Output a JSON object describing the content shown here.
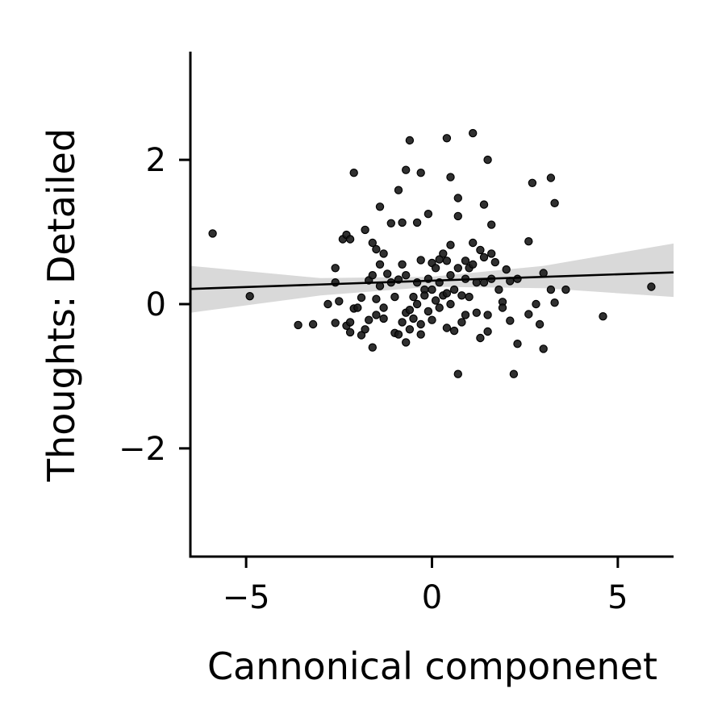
{
  "chart_data": {
    "type": "scatter",
    "xlabel": "Cannonical componenet",
    "ylabel": "Thoughts: Detailed",
    "xlim": [
      -6.5,
      6.5
    ],
    "ylim": [
      -3.5,
      3.5
    ],
    "xticks": [
      {
        "value": -5,
        "label": "−5"
      },
      {
        "value": 0,
        "label": "0"
      },
      {
        "value": 5,
        "label": "5"
      }
    ],
    "yticks": [
      {
        "value": 2,
        "label": "2"
      },
      {
        "value": 0,
        "label": "0"
      },
      {
        "value": -2,
        "label": "−2"
      }
    ],
    "grid": false,
    "colors": {
      "points": "#1a1a1a",
      "line": "#000000",
      "band": "#d9d9d9"
    },
    "regression": {
      "x": [
        -6.5,
        6.5
      ],
      "y": [
        0.21,
        0.44
      ]
    },
    "confidence_band": {
      "x": [
        -6.5,
        -3,
        0,
        3,
        6.5
      ],
      "lower": [
        -0.12,
        0.12,
        0.24,
        0.22,
        0.1
      ],
      "upper": [
        0.53,
        0.36,
        0.38,
        0.53,
        0.84
      ]
    },
    "points": [
      [
        -5.9,
        0.98
      ],
      [
        -4.9,
        0.11
      ],
      [
        -3.6,
        -0.29
      ],
      [
        -3.2,
        -0.28
      ],
      [
        -2.8,
        0.0
      ],
      [
        -2.6,
        0.5
      ],
      [
        -2.6,
        0.3
      ],
      [
        -2.6,
        -0.26
      ],
      [
        -2.5,
        0.04
      ],
      [
        -2.4,
        0.9
      ],
      [
        -2.3,
        0.96
      ],
      [
        -2.3,
        -0.3
      ],
      [
        -2.2,
        0.9
      ],
      [
        -2.2,
        -0.25
      ],
      [
        -2.2,
        -0.39
      ],
      [
        -2.1,
        1.82
      ],
      [
        -2.1,
        -0.06
      ],
      [
        -2.0,
        -0.05
      ],
      [
        -1.9,
        -0.43
      ],
      [
        -1.9,
        0.09
      ],
      [
        -1.8,
        1.03
      ],
      [
        -1.8,
        -0.35
      ],
      [
        -1.7,
        0.33
      ],
      [
        -1.7,
        -0.22
      ],
      [
        -1.6,
        0.85
      ],
      [
        -1.6,
        0.4
      ],
      [
        -1.6,
        -0.6
      ],
      [
        -1.5,
        0.76
      ],
      [
        -1.5,
        0.07
      ],
      [
        -1.5,
        -0.15
      ],
      [
        -1.4,
        1.35
      ],
      [
        -1.4,
        0.55
      ],
      [
        -1.4,
        0.25
      ],
      [
        -1.3,
        0.7
      ],
      [
        -1.3,
        -0.05
      ],
      [
        -1.3,
        -0.2
      ],
      [
        -1.2,
        0.42
      ],
      [
        -1.1,
        1.12
      ],
      [
        -1.1,
        0.3
      ],
      [
        -1.0,
        0.1
      ],
      [
        -1.0,
        -0.4
      ],
      [
        -0.9,
        1.58
      ],
      [
        -0.9,
        0.34
      ],
      [
        -0.9,
        -0.42
      ],
      [
        -0.8,
        1.13
      ],
      [
        -0.8,
        0.55
      ],
      [
        -0.8,
        -0.25
      ],
      [
        -0.7,
        1.86
      ],
      [
        -0.7,
        0.4
      ],
      [
        -0.7,
        -0.12
      ],
      [
        -0.7,
        -0.53
      ],
      [
        -0.6,
        2.27
      ],
      [
        -0.6,
        -0.08
      ],
      [
        -0.6,
        -0.35
      ],
      [
        -0.5,
        0.1
      ],
      [
        -0.5,
        -0.2
      ],
      [
        -0.4,
        1.13
      ],
      [
        -0.4,
        0.3
      ],
      [
        -0.4,
        0.0
      ],
      [
        -0.3,
        1.82
      ],
      [
        -0.3,
        0.61
      ],
      [
        -0.3,
        -0.28
      ],
      [
        -0.3,
        -0.42
      ],
      [
        -0.2,
        0.2
      ],
      [
        -0.2,
        0.12
      ],
      [
        -0.1,
        1.25
      ],
      [
        -0.1,
        0.35
      ],
      [
        -0.1,
        -0.1
      ],
      [
        0.0,
        0.57
      ],
      [
        0.0,
        0.2
      ],
      [
        0.0,
        -0.22
      ],
      [
        0.1,
        0.5
      ],
      [
        0.1,
        0.05
      ],
      [
        0.2,
        0.62
      ],
      [
        0.2,
        0.3
      ],
      [
        0.2,
        -0.05
      ],
      [
        0.3,
        0.7
      ],
      [
        0.3,
        0.12
      ],
      [
        0.4,
        2.3
      ],
      [
        0.4,
        0.6
      ],
      [
        0.4,
        0.15
      ],
      [
        0.4,
        -0.33
      ],
      [
        0.5,
        1.76
      ],
      [
        0.5,
        0.82
      ],
      [
        0.5,
        0.4
      ],
      [
        0.5,
        0.0
      ],
      [
        0.6,
        0.2
      ],
      [
        0.6,
        -0.37
      ],
      [
        0.7,
        1.47
      ],
      [
        0.7,
        1.22
      ],
      [
        0.7,
        0.5
      ],
      [
        0.7,
        -0.97
      ],
      [
        0.8,
        0.12
      ],
      [
        0.8,
        -0.25
      ],
      [
        0.9,
        0.6
      ],
      [
        0.9,
        0.35
      ],
      [
        0.9,
        -0.15
      ],
      [
        1.0,
        0.5
      ],
      [
        1.0,
        0.1
      ],
      [
        1.1,
        2.37
      ],
      [
        1.1,
        0.85
      ],
      [
        1.1,
        0.55
      ],
      [
        1.2,
        0.3
      ],
      [
        1.2,
        -0.12
      ],
      [
        1.3,
        0.75
      ],
      [
        1.3,
        -0.47
      ],
      [
        1.4,
        1.38
      ],
      [
        1.4,
        0.65
      ],
      [
        1.4,
        0.3
      ],
      [
        1.5,
        2.0
      ],
      [
        1.5,
        -0.38
      ],
      [
        1.5,
        -0.15
      ],
      [
        1.6,
        1.1
      ],
      [
        1.6,
        0.7
      ],
      [
        1.6,
        0.35
      ],
      [
        1.7,
        0.58
      ],
      [
        1.8,
        0.2
      ],
      [
        1.9,
        0.03
      ],
      [
        1.9,
        -0.05
      ],
      [
        2.0,
        0.48
      ],
      [
        2.1,
        0.32
      ],
      [
        2.1,
        -0.23
      ],
      [
        2.2,
        -0.97
      ],
      [
        2.3,
        0.35
      ],
      [
        2.3,
        -0.55
      ],
      [
        2.6,
        0.87
      ],
      [
        2.6,
        -0.14
      ],
      [
        2.7,
        1.68
      ],
      [
        2.8,
        0.0
      ],
      [
        2.9,
        -0.28
      ],
      [
        3.0,
        0.43
      ],
      [
        3.0,
        -0.62
      ],
      [
        3.2,
        1.75
      ],
      [
        3.2,
        0.2
      ],
      [
        3.3,
        1.4
      ],
      [
        3.3,
        0.02
      ],
      [
        3.6,
        0.2
      ],
      [
        4.6,
        -0.17
      ],
      [
        5.9,
        0.24
      ]
    ]
  }
}
